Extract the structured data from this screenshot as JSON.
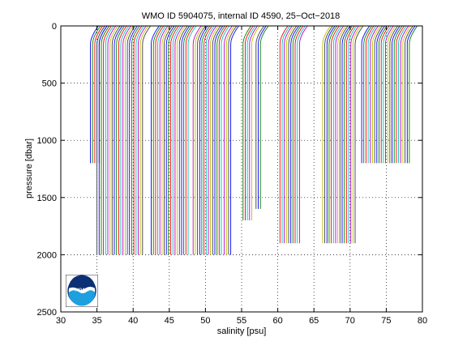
{
  "chart_data": {
    "type": "line",
    "title": "WMO ID 5904075, internal ID 4590, 25−Oct−2018",
    "xlabel": "salinity [psu]",
    "ylabel": "pressure [dbar]",
    "xlim": [
      30,
      80
    ],
    "ylim": [
      2500,
      0
    ],
    "y_reversed": true,
    "xticks": [
      30,
      35,
      40,
      45,
      50,
      55,
      60,
      65,
      70,
      75,
      80
    ],
    "yticks": [
      0,
      500,
      1000,
      1500,
      2000,
      2500
    ],
    "grid": true,
    "grid_style": "dotted",
    "offset_profiles": true,
    "profile_offset_step_psu": 0.3,
    "series_colors": [
      "#0000ff",
      "#008000",
      "#ff0000",
      "#00bfbf",
      "#bf00bf",
      "#bfbf00",
      "#3f3f3f"
    ],
    "profile_groups": [
      {
        "count": 6,
        "x_start": 34.1,
        "max_pressure": 1200
      },
      {
        "count": 22,
        "x_start": 35.0,
        "max_pressure": 2000
      },
      {
        "count": 18,
        "x_start": 42.5,
        "max_pressure": 2000
      },
      {
        "count": 14,
        "x_start": 48.3,
        "max_pressure": 2000
      },
      {
        "count": 4,
        "x_start": 52.6,
        "max_pressure": 2000
      },
      {
        "count": 5,
        "x_start": 55.2,
        "max_pressure": 1700
      },
      {
        "count": 3,
        "x_start": 57.0,
        "max_pressure": 1600
      },
      {
        "count": 10,
        "x_start": 60.3,
        "max_pressure": 1900
      },
      {
        "count": 16,
        "x_start": 66.2,
        "max_pressure": 1900
      },
      {
        "count": 23,
        "x_start": 71.6,
        "max_pressure": 1200
      }
    ],
    "surface_shift_psu": 1.1,
    "surface_layer_dbar": 150
  },
  "logo": {
    "name": "NOAA",
    "colors": {
      "dark": "#0d2f73",
      "light": "#1e9fe0"
    }
  }
}
